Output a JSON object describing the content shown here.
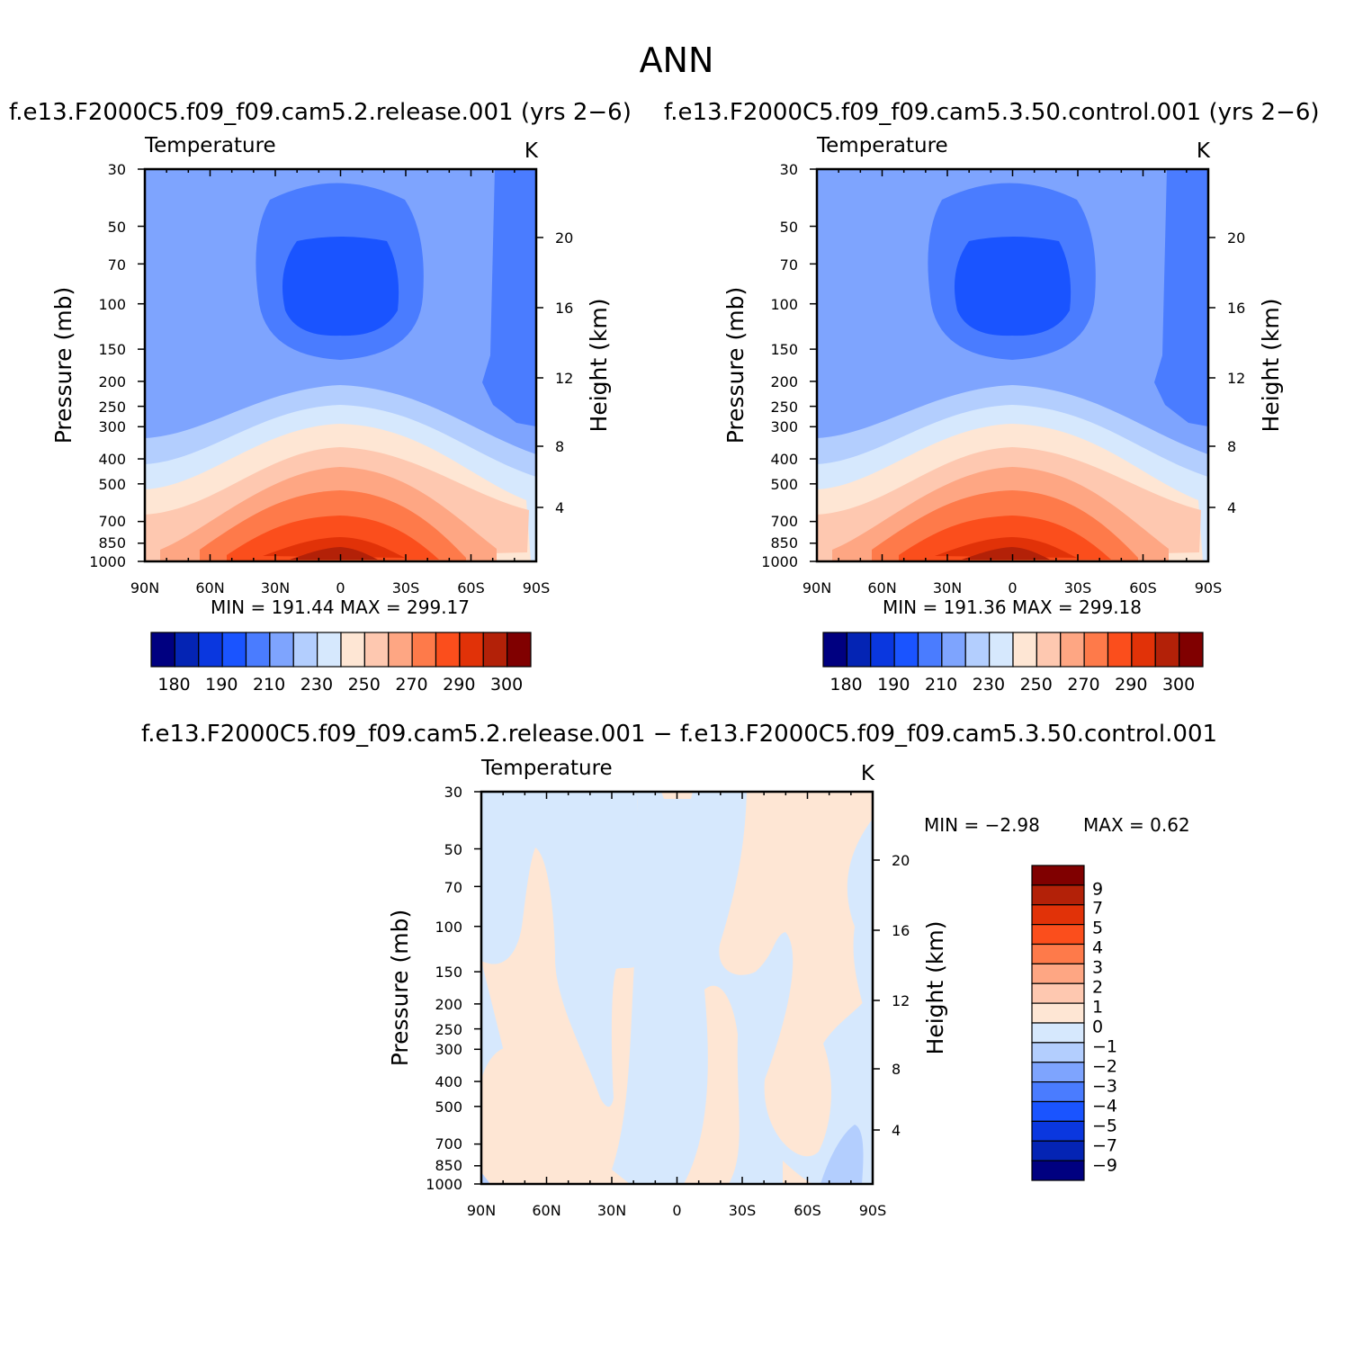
{
  "figure_title": "ANN",
  "colors": {
    "abs": [
      "#000080",
      "#0424b4",
      "#0a37df",
      "#1a54ff",
      "#4a7cff",
      "#7ea4fe",
      "#b3cefe",
      "#d6e8fd",
      "#fee6d4",
      "#fec8b0",
      "#fea683",
      "#fe7a4a",
      "#fb4e1c",
      "#e13208",
      "#b32108",
      "#800000"
    ],
    "diff": [
      "#000080",
      "#0424b4",
      "#0a37df",
      "#1a54ff",
      "#4a7cff",
      "#7ea4fe",
      "#b3cefe",
      "#d6e8fd",
      "#fee6d4",
      "#fec8b0",
      "#fea683",
      "#fe7a4a",
      "#fb4e1c",
      "#e13208",
      "#b32108",
      "#800000"
    ]
  },
  "panels": [
    {
      "id": "model",
      "case": "f.e13.F2000C5.f09_f09.cam5.2.release.001  (yrs  2−6)",
      "variable": "Temperature",
      "units": "K",
      "stats": "MIN  =  191.44   MAX  =  299.17",
      "ylabel": "Pressure  (mb)",
      "ylabel_right": "Height  (km)"
    },
    {
      "id": "control",
      "case": "f.e13.F2000C5.f09_f09.cam5.3.50.control.001  (yrs  2−6)",
      "variable": "Temperature",
      "units": "K",
      "stats": "MIN  =  191.36   MAX  =  299.18",
      "ylabel": "Pressure  (mb)",
      "ylabel_right": "Height  (km)"
    },
    {
      "id": "diff",
      "case": "f.e13.F2000C5.f09_f09.cam5.2.release.001  −  f.e13.F2000C5.f09_f09.cam5.3.50.control.001",
      "variable": "Temperature",
      "units": "K",
      "stats_min": "MIN  =    −2.98",
      "stats_max": "MAX  =     0.62",
      "ylabel": "Pressure  (mb)",
      "ylabel_right": "Height  (km)"
    }
  ],
  "chart_data": [
    {
      "type": "heatmap",
      "panel": "model",
      "title": "f.e13.F2000C5.f09_f09.cam5.2.release.001  (yrs  2−6)",
      "variable": "Temperature",
      "units": "K",
      "x_tick_labels": [
        "90N",
        "60N",
        "30N",
        "0",
        "30S",
        "60S",
        "90S"
      ],
      "x_range": [
        90,
        -90
      ],
      "y_tick_labels": [
        "30",
        "50",
        "70",
        "100",
        "150",
        "200",
        "250",
        "300",
        "400",
        "500",
        "700",
        "850",
        "1000"
      ],
      "y_scale": "log",
      "y_range": [
        30,
        1000
      ],
      "y2_tick_labels": [
        "4",
        "8",
        "12",
        "16",
        "20"
      ],
      "min": 191.44,
      "max": 299.17,
      "colorbar_labels": [
        "180",
        "190",
        "210",
        "230",
        "250",
        "270",
        "290",
        "300"
      ]
    },
    {
      "type": "heatmap",
      "panel": "control",
      "title": "f.e13.F2000C5.f09_f09.cam5.3.50.control.001  (yrs  2−6)",
      "variable": "Temperature",
      "units": "K",
      "x_tick_labels": [
        "90N",
        "60N",
        "30N",
        "0",
        "30S",
        "60S",
        "90S"
      ],
      "x_range": [
        90,
        -90
      ],
      "y_tick_labels": [
        "30",
        "50",
        "70",
        "100",
        "150",
        "200",
        "250",
        "300",
        "400",
        "500",
        "700",
        "850",
        "1000"
      ],
      "y_scale": "log",
      "y_range": [
        30,
        1000
      ],
      "y2_tick_labels": [
        "4",
        "8",
        "12",
        "16",
        "20"
      ],
      "min": 191.36,
      "max": 299.18,
      "colorbar_labels": [
        "180",
        "190",
        "210",
        "230",
        "250",
        "270",
        "290",
        "300"
      ]
    },
    {
      "type": "heatmap",
      "panel": "diff",
      "title": "f.e13.F2000C5.f09_f09.cam5.2.release.001  −  f.e13.F2000C5.f09_f09.cam5.3.50.control.001",
      "variable": "Temperature",
      "units": "K",
      "x_tick_labels": [
        "90N",
        "60N",
        "30N",
        "0",
        "30S",
        "60S",
        "90S"
      ],
      "x_range": [
        90,
        -90
      ],
      "y_tick_labels": [
        "30",
        "50",
        "70",
        "100",
        "150",
        "200",
        "250",
        "300",
        "400",
        "500",
        "700",
        "850",
        "1000"
      ],
      "y_scale": "log",
      "y_range": [
        30,
        1000
      ],
      "y2_tick_labels": [
        "4",
        "8",
        "12",
        "16",
        "20"
      ],
      "min": -2.98,
      "max": 0.62,
      "colorbar_labels": [
        "9",
        "7",
        "5",
        "4",
        "3",
        "2",
        "1",
        "0",
        "−1",
        "−2",
        "−3",
        "−4",
        "−5",
        "−7",
        "−9"
      ]
    }
  ]
}
